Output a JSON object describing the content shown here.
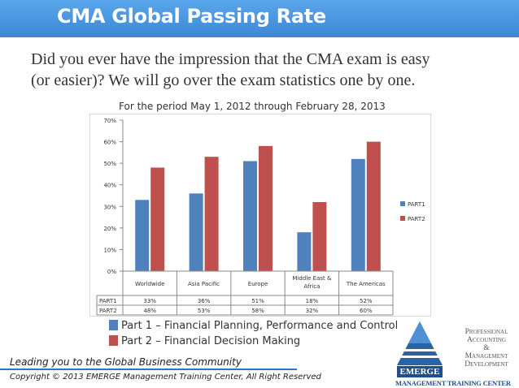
{
  "header": {
    "title": "CMA Global Passing Rate"
  },
  "intro": {
    "line1": "Did you ever have the impression that the CMA exam is easy",
    "line2": "(or easier)? We will go over the exam statistics one by one."
  },
  "period": "For the period May 1, 2012 through February 28, 2013",
  "chart_data": {
    "type": "bar",
    "categories": [
      "Worldwide",
      "Asia Pacific",
      "Europe",
      "Middle East & Africa",
      "The Americas"
    ],
    "series": [
      {
        "name": "PART1",
        "values": [
          33,
          36,
          51,
          18,
          52
        ],
        "color": "#4f81bd"
      },
      {
        "name": "PART2",
        "values": [
          48,
          53,
          58,
          32,
          60
        ],
        "color": "#c0504d"
      }
    ],
    "y_ticks": [
      "0%",
      "10%",
      "20%",
      "30%",
      "40%",
      "50%",
      "60%",
      "70%"
    ],
    "ylim": [
      0,
      70
    ],
    "unit": "%",
    "grid": false,
    "legend_position": "right",
    "data_table": {
      "rows": [
        {
          "label": "PART1",
          "cells": [
            "33%",
            "36%",
            "51%",
            "18%",
            "52%"
          ]
        },
        {
          "label": "PART2",
          "cells": [
            "48%",
            "53%",
            "58%",
            "32%",
            "60%"
          ]
        }
      ]
    }
  },
  "legend_bottom": [
    {
      "text": "Part 1 – Financial Planning, Performance and Control",
      "color": "#4f81bd"
    },
    {
      "text": "Part 2 – Financial Decision Making",
      "color": "#c0504d"
    }
  ],
  "footer": {
    "tagline": "Leading you to the Global Business Community",
    "copyright": "Copyright © 2013 EMERGE Management Training Center, All Right Reserved"
  },
  "logo": {
    "line1": "Professional",
    "line2": "Accounting",
    "line3": "&",
    "line4": "Management",
    "line5": "Development",
    "name": "EMERGE",
    "sub": "MANAGEMENT TRAINING CENTER"
  }
}
